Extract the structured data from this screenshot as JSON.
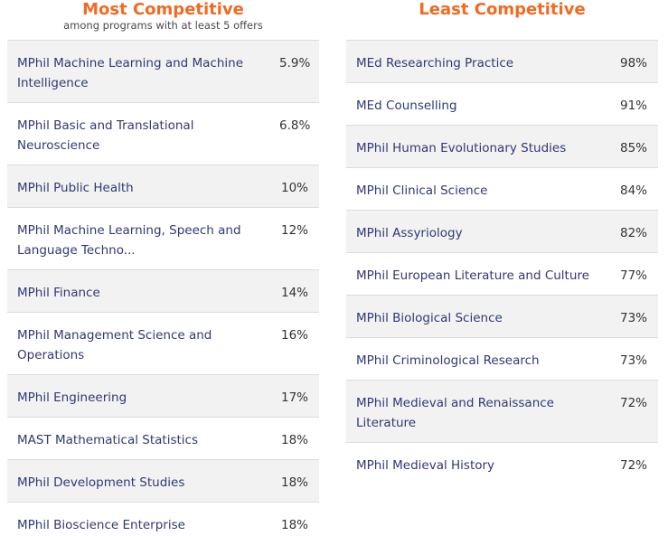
{
  "most": {
    "title": "Most Competitive",
    "subtitle": "among programs with at least 5 offers",
    "rows": [
      {
        "name": "MPhil Machine Learning and Machine Intelligence",
        "pct": "5.9%"
      },
      {
        "name": "MPhil Basic and Translational Neuroscience",
        "pct": "6.8%"
      },
      {
        "name": "MPhil Public Health",
        "pct": "10%"
      },
      {
        "name": "MPhil Machine Learning, Speech and Language Techno...",
        "pct": "12%"
      },
      {
        "name": "MPhil Finance",
        "pct": "14%"
      },
      {
        "name": "MPhil Management Science and Operations",
        "pct": "16%"
      },
      {
        "name": "MPhil Engineering",
        "pct": "17%"
      },
      {
        "name": "MAST Mathematical Statistics",
        "pct": "18%"
      },
      {
        "name": "MPhil Development Studies",
        "pct": "18%"
      },
      {
        "name": "MPhil Bioscience Enterprise",
        "pct": "18%"
      }
    ]
  },
  "least": {
    "title": "Least Competitive",
    "rows": [
      {
        "name": "MEd Researching Practice",
        "pct": "98%"
      },
      {
        "name": "MEd Counselling",
        "pct": "91%"
      },
      {
        "name": "MPhil Human Evolutionary Studies",
        "pct": "85%"
      },
      {
        "name": "MPhil Clinical Science",
        "pct": "84%"
      },
      {
        "name": "MPhil Assyriology",
        "pct": "82%"
      },
      {
        "name": "MPhil European Literature and Culture",
        "pct": "77%"
      },
      {
        "name": "MPhil Biological Science",
        "pct": "73%"
      },
      {
        "name": "MPhil Criminological Research",
        "pct": "73%"
      },
      {
        "name": "MPhil Medieval and Renaissance Literature",
        "pct": "72%"
      },
      {
        "name": "MPhil Medieval History",
        "pct": "72%"
      }
    ]
  },
  "colors": {
    "accent": "#f26a21",
    "link": "#2f3a74",
    "row_shade": "#f2f2f2"
  }
}
